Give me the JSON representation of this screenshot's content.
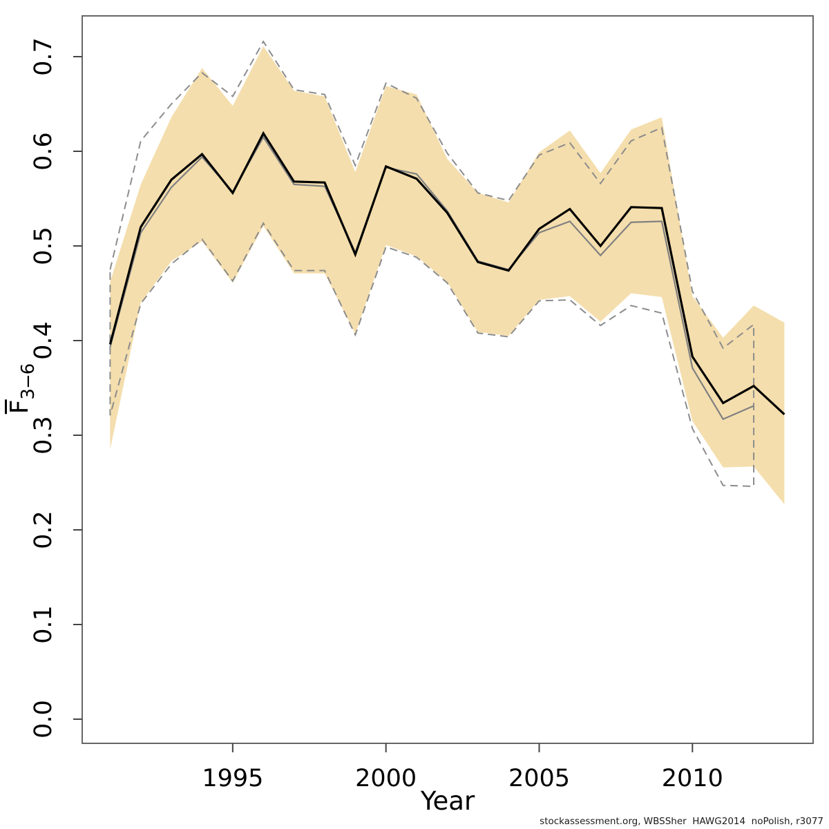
{
  "footer": {
    "text": "stockassessment.org, WBSSher  HAWG2014  noPolish, r3077"
  },
  "chart_data": {
    "type": "line",
    "title": "",
    "xlabel": "Year",
    "ylabel_main": "F",
    "ylabel_sub": "3−6",
    "grid": false,
    "legend_position": "none",
    "xlim": [
      1991,
      2013
    ],
    "ylim": [
      0,
      0.73
    ],
    "x_ticks": [
      1995,
      2000,
      2005,
      2010
    ],
    "x_tick_labels": [
      "1995",
      "2000",
      "2005",
      "2010"
    ],
    "y_ticks": [
      0.0,
      0.1,
      0.2,
      0.3,
      0.4,
      0.5,
      0.6,
      0.7
    ],
    "y_tick_labels": [
      "0.0",
      "0.1",
      "0.2",
      "0.3",
      "0.4",
      "0.5",
      "0.6",
      "0.7"
    ],
    "years": [
      1991,
      1992,
      1993,
      1994,
      1995,
      1996,
      1997,
      1998,
      1999,
      2000,
      2001,
      2002,
      2003,
      2004,
      2005,
      2006,
      2007,
      2008,
      2009,
      2010,
      2011,
      2012,
      2013
    ],
    "series": [
      {
        "name": "current-assessment-fbar",
        "color": "#000000",
        "style": "solid",
        "values": [
          0.396,
          0.52,
          0.57,
          0.597,
          0.556,
          0.619,
          0.568,
          0.567,
          0.491,
          0.584,
          0.571,
          0.535,
          0.483,
          0.474,
          0.518,
          0.539,
          0.5,
          0.541,
          0.54,
          0.383,
          0.334,
          0.352,
          0.322
        ]
      },
      {
        "name": "previous-assessment-fbar",
        "color": "#808080",
        "style": "solid",
        "values": [
          0.393,
          0.514,
          0.562,
          0.594,
          0.557,
          0.615,
          0.565,
          0.563,
          0.493,
          0.583,
          0.576,
          0.537,
          0.484,
          0.475,
          0.514,
          0.526,
          0.49,
          0.525,
          0.526,
          0.371,
          0.317,
          0.331
        ]
      }
    ],
    "band": {
      "name": "current-confidence-band",
      "fill": "#F4DEAD",
      "upper": [
        0.462,
        0.565,
        0.636,
        0.688,
        0.648,
        0.711,
        0.664,
        0.658,
        0.578,
        0.669,
        0.66,
        0.592,
        0.556,
        0.546,
        0.599,
        0.622,
        0.577,
        0.623,
        0.636,
        0.447,
        0.403,
        0.437,
        0.419
      ],
      "lower": [
        0.285,
        0.44,
        0.484,
        0.505,
        0.461,
        0.521,
        0.471,
        0.471,
        0.407,
        0.501,
        0.489,
        0.462,
        0.409,
        0.405,
        0.443,
        0.447,
        0.42,
        0.45,
        0.446,
        0.315,
        0.266,
        0.267,
        0.227
      ]
    },
    "dashed_band": {
      "name": "previous-confidence-bounds",
      "stroke": "#8C8C8C",
      "style": "dashed",
      "upper": [
        0.475,
        0.611,
        0.65,
        0.683,
        0.658,
        0.716,
        0.665,
        0.66,
        0.585,
        0.672,
        0.656,
        0.598,
        0.556,
        0.548,
        0.596,
        0.609,
        0.566,
        0.611,
        0.625,
        0.452,
        0.392,
        0.417
      ],
      "lower": [
        0.321,
        0.439,
        0.481,
        0.507,
        0.463,
        0.524,
        0.474,
        0.474,
        0.406,
        0.499,
        0.488,
        0.461,
        0.408,
        0.404,
        0.442,
        0.443,
        0.416,
        0.437,
        0.429,
        0.307,
        0.247,
        0.246
      ]
    }
  }
}
